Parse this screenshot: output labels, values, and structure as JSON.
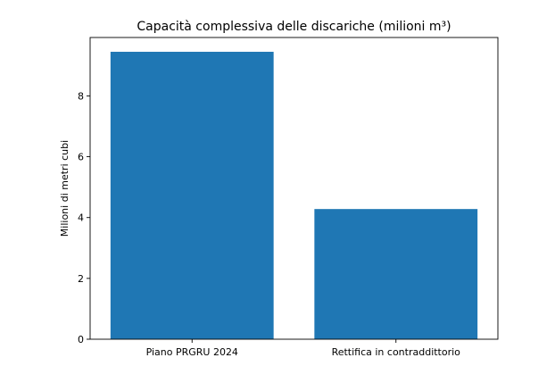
{
  "chart_data": {
    "type": "bar",
    "title": "Capacità complessiva delle discariche (milioni m³)",
    "xlabel": "",
    "ylabel": "Milioni di metri cubi",
    "categories": [
      "Piano PRGRU 2024",
      "Rettifica in contraddittorio"
    ],
    "values": [
      9.45,
      4.28
    ],
    "ylim": [
      0,
      9.92
    ],
    "yticks": [
      0,
      2,
      4,
      6,
      8
    ],
    "ytick_labels": [
      "0",
      "2",
      "4",
      "6",
      "8"
    ],
    "bar_color": "#1f77b4",
    "grid": false,
    "legend": "none"
  }
}
